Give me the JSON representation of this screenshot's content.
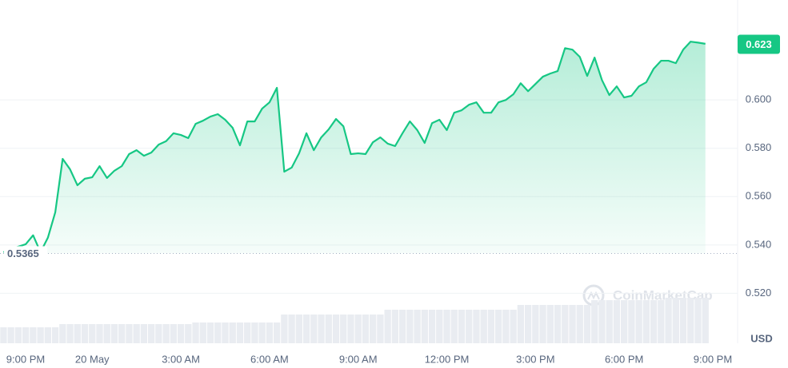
{
  "chart_data": {
    "type": "line",
    "x": [
      0,
      0.25,
      0.5,
      0.75,
      1,
      1.25,
      1.5,
      1.75,
      2,
      2.25,
      2.5,
      2.75,
      3,
      3.25,
      3.5,
      3.75,
      4,
      4.25,
      4.5,
      4.75,
      5,
      5.25,
      5.5,
      5.75,
      6,
      6.25,
      6.5,
      6.75,
      7,
      7.25,
      7.5,
      7.75,
      8,
      8.25,
      8.5,
      8.75,
      9,
      9.25,
      9.5,
      9.75,
      10,
      10.25,
      10.5,
      10.75,
      11,
      11.25,
      11.5,
      11.75,
      12,
      12.25,
      12.5,
      12.75,
      13,
      13.25,
      13.5,
      13.75,
      14,
      14.25,
      14.5,
      14.75,
      15,
      15.25,
      15.5,
      15.75,
      16,
      16.25,
      16.5,
      16.75,
      17,
      17.25,
      17.5,
      17.75,
      18,
      18.25,
      18.5,
      18.75,
      19,
      19.25,
      19.5,
      19.75,
      20,
      20.25,
      20.5,
      20.75,
      21,
      21.25,
      21.5,
      21.75,
      22,
      22.25,
      22.5,
      22.75,
      23,
      23.25,
      23.5,
      23.75
    ],
    "values": [
      0.537,
      0.5384,
      0.5393,
      0.5403,
      0.544,
      0.537,
      0.543,
      0.5535,
      0.5756,
      0.5713,
      0.5647,
      0.5674,
      0.568,
      0.5726,
      0.5677,
      0.5707,
      0.5726,
      0.5776,
      0.5792,
      0.5769,
      0.5782,
      0.5815,
      0.5829,
      0.5862,
      0.5855,
      0.5842,
      0.5901,
      0.5914,
      0.5931,
      0.5941,
      0.5918,
      0.5885,
      0.5812,
      0.5911,
      0.5911,
      0.5964,
      0.599,
      0.605,
      0.5703,
      0.572,
      0.5779,
      0.5862,
      0.5792,
      0.5845,
      0.5878,
      0.5921,
      0.5891,
      0.5776,
      0.5779,
      0.5776,
      0.5825,
      0.5845,
      0.5819,
      0.5809,
      0.5862,
      0.5911,
      0.5875,
      0.5822,
      0.5904,
      0.5918,
      0.5875,
      0.5947,
      0.5957,
      0.598,
      0.599,
      0.5947,
      0.5947,
      0.599,
      0.6,
      0.6023,
      0.6069,
      0.6036,
      0.6066,
      0.6096,
      0.6109,
      0.6119,
      0.6214,
      0.6208,
      0.6178,
      0.6099,
      0.6175,
      0.6082,
      0.602,
      0.6056,
      0.601,
      0.6017,
      0.6056,
      0.6073,
      0.6129,
      0.6162,
      0.6162,
      0.6152,
      0.6208,
      0.6241,
      0.6237,
      0.6232
    ],
    "color": "#16c784",
    "volume": [
      20,
      20,
      20,
      20,
      20,
      20,
      20,
      20,
      24,
      24,
      24,
      24,
      24,
      24,
      24,
      24,
      24,
      24,
      24,
      24,
      24,
      24,
      24,
      24,
      24,
      24,
      26,
      26,
      26,
      26,
      26,
      26,
      26,
      26,
      26,
      26,
      26,
      26,
      36,
      36,
      36,
      36,
      36,
      36,
      36,
      36,
      36,
      36,
      36,
      36,
      36,
      36,
      42,
      42,
      42,
      42,
      42,
      42,
      42,
      42,
      42,
      42,
      42,
      42,
      42,
      42,
      42,
      42,
      42,
      42,
      48,
      48,
      48,
      48,
      48,
      48,
      48,
      48,
      48,
      48,
      54,
      54,
      54,
      54,
      54,
      54,
      54,
      54,
      54,
      54,
      57,
      57,
      57,
      57,
      57,
      57
    ],
    "volume_color": "#e9ecf1",
    "volume_lim": [
      0,
      100
    ],
    "xlim": [
      -0.12,
      24.84
    ],
    "xticks": [
      {
        "value": 0,
        "label": "9:00 PM"
      },
      {
        "value": 3,
        "label": "20 May"
      },
      {
        "value": 6,
        "label": "3:00 AM"
      },
      {
        "value": 9,
        "label": "6:00 AM"
      },
      {
        "value": 12,
        "label": "9:00 AM"
      },
      {
        "value": 15,
        "label": "12:00 PM"
      },
      {
        "value": 18,
        "label": "3:00 PM"
      },
      {
        "value": 21,
        "label": "6:00 PM"
      },
      {
        "value": 24,
        "label": "9:00 PM"
      }
    ],
    "ylim": [
      0.5,
      0.64
    ],
    "yticks": [
      {
        "value": 0.52,
        "label": "0.520"
      },
      {
        "value": 0.54,
        "label": "0.540"
      },
      {
        "value": 0.56,
        "label": "0.560"
      },
      {
        "value": 0.58,
        "label": "0.580"
      },
      {
        "value": 0.6,
        "label": "0.600"
      }
    ],
    "grid": true,
    "reference": 0.5365,
    "current_price": 0.623,
    "currency": "USD",
    "watermark": "CoinMarketCap"
  }
}
